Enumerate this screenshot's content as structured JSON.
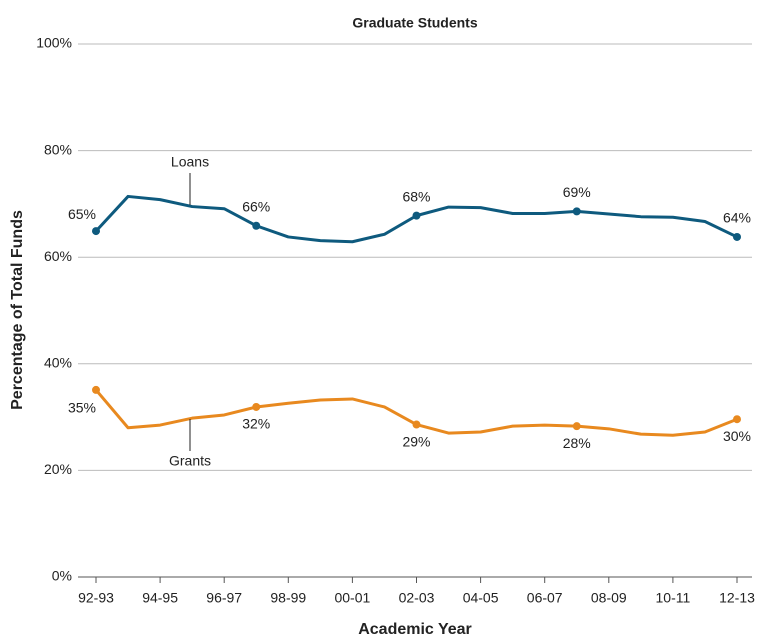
{
  "chart_data": {
    "type": "line",
    "title": "Graduate Students",
    "x_label": "Academic Year",
    "y_label": "Percentage of Total Funds",
    "categories": [
      "92-93",
      null,
      "94-95",
      null,
      "96-97",
      null,
      "98-99",
      null,
      "00-01",
      null,
      "02-03",
      null,
      "04-05",
      null,
      "06-07",
      null,
      "08-09",
      null,
      "10-11",
      null,
      "12-13"
    ],
    "series": [
      {
        "name": "Loans",
        "color": "#0e5a7e",
        "values": [
          64.9,
          71.4,
          70.8,
          69.5,
          69.1,
          65.9,
          63.8,
          63.1,
          62.9,
          64.3,
          67.8,
          69.4,
          69.3,
          68.2,
          68.2,
          68.6,
          68.1,
          67.6,
          67.5,
          66.7,
          63.8
        ],
        "value_labels": [
          "65%",
          null,
          null,
          null,
          null,
          "66%",
          null,
          null,
          null,
          null,
          "68%",
          null,
          null,
          null,
          null,
          "69%",
          null,
          null,
          null,
          null,
          "64%"
        ]
      },
      {
        "name": "Grants",
        "color": "#e8891f",
        "values": [
          35.1,
          28.0,
          28.5,
          29.8,
          30.4,
          31.9,
          32.6,
          33.2,
          33.4,
          31.9,
          28.6,
          27.0,
          27.2,
          28.3,
          28.5,
          28.3,
          27.8,
          26.8,
          26.6,
          27.2,
          29.6
        ],
        "value_labels": [
          "35%",
          null,
          null,
          null,
          null,
          "32%",
          null,
          null,
          null,
          null,
          "29%",
          null,
          null,
          null,
          null,
          "28%",
          null,
          null,
          null,
          null,
          "30%"
        ]
      }
    ],
    "ylim": [
      0,
      100
    ],
    "yticks": [
      {
        "value": 0,
        "label": "0%"
      },
      {
        "value": 20,
        "label": "20%"
      },
      {
        "value": 40,
        "label": "40%"
      },
      {
        "value": 60,
        "label": "60%"
      },
      {
        "value": 80,
        "label": "80%"
      },
      {
        "value": 100,
        "label": "100%"
      }
    ],
    "grid": true
  }
}
